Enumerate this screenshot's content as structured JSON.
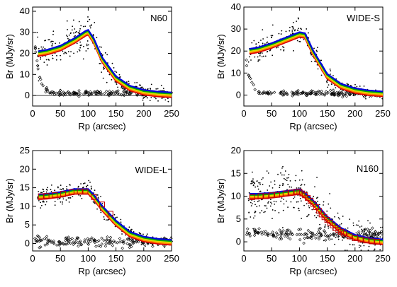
{
  "chart_data": [
    {
      "type": "scatter",
      "title": "N60",
      "xlabel": "Rp (arcsec)",
      "ylabel": "Br (MJy/sr)",
      "xlim": [
        0,
        250
      ],
      "ylim": [
        -5,
        42
      ],
      "xticks": [
        "0",
        "50",
        "100",
        "150",
        "200",
        "250"
      ],
      "yticks": [
        "0",
        "10",
        "20",
        "30",
        "40"
      ],
      "legend": "none",
      "zero_line": true,
      "profile": {
        "x": [
          0,
          25,
          50,
          75,
          95,
          100,
          110,
          125,
          150,
          175,
          200,
          225,
          250
        ],
        "y": [
          19.5,
          20.5,
          22.5,
          26,
          29.5,
          30,
          26,
          17,
          8,
          3.5,
          1.5,
          0.7,
          0.3
        ]
      },
      "background": {
        "x": [
          2,
          5,
          8,
          10,
          12,
          15,
          18,
          20,
          25,
          30,
          40,
          60,
          80,
          100,
          120,
          140,
          160,
          180,
          200,
          220,
          240,
          250
        ],
        "y": [
          28,
          22,
          16,
          12,
          9,
          7,
          5,
          3.5,
          2.5,
          1.5,
          1,
          1,
          1,
          1.2,
          1,
          1,
          1,
          1,
          1,
          1,
          1,
          1
        ]
      },
      "scatter_spread": 3.5
    },
    {
      "type": "scatter",
      "title": "WIDE-S",
      "xlabel": "Rp (arcsec)",
      "ylabel": "Br (MJy/sr)",
      "xlim": [
        0,
        250
      ],
      "ylim": [
        -5,
        40
      ],
      "xticks": [
        "0",
        "50",
        "100",
        "150",
        "200",
        "250"
      ],
      "yticks": [
        "0",
        "10",
        "20",
        "30",
        "40"
      ],
      "legend": "none",
      "zero_line": false,
      "profile": {
        "x": [
          0,
          25,
          50,
          75,
          100,
          110,
          125,
          150,
          175,
          200,
          225,
          250
        ],
        "y": [
          19.5,
          20.5,
          22.5,
          25,
          27.5,
          27,
          19,
          8.5,
          4,
          2,
          1,
          0.5
        ]
      },
      "background": {
        "x": [
          2,
          5,
          8,
          10,
          12,
          15,
          18,
          20,
          25,
          30,
          40,
          60,
          80,
          100,
          120,
          140,
          160,
          180,
          200,
          220,
          240,
          250
        ],
        "y": [
          22,
          14,
          10,
          8,
          7,
          5,
          3.5,
          2.5,
          1.5,
          1,
          0.8,
          0.8,
          0.8,
          0.8,
          0.8,
          0.8,
          0.8,
          0.8,
          0.8,
          0.8,
          0.8,
          0.8
        ]
      },
      "scatter_spread": 2.5
    },
    {
      "type": "scatter",
      "title": "WIDE-L",
      "xlabel": "Rp (arcsec)",
      "ylabel": "Br (MJy/sr)",
      "xlim": [
        0,
        250
      ],
      "ylim": [
        -2,
        25
      ],
      "xticks": [
        "0",
        "50",
        "100",
        "150",
        "200",
        "250"
      ],
      "yticks": [
        "0",
        "5",
        "10",
        "15",
        "20",
        "25"
      ],
      "legend": "none",
      "zero_line": false,
      "profile": {
        "x": [
          0,
          15,
          25,
          50,
          75,
          100,
          110,
          125,
          150,
          175,
          200,
          225,
          250
        ],
        "y": [
          12.5,
          12.6,
          12.7,
          13.2,
          14,
          14,
          12.5,
          9.5,
          5.5,
          2.5,
          1.2,
          0.6,
          0.3
        ]
      },
      "background": {
        "x": [
          10,
          20,
          40,
          60,
          80,
          100,
          120,
          140,
          160,
          180,
          200,
          220,
          240,
          250
        ],
        "y": [
          1,
          0.5,
          0.5,
          0.5,
          0.5,
          0.5,
          0.5,
          0.5,
          0.5,
          0.5,
          0.5,
          0.5,
          0.5,
          0.5
        ]
      },
      "boxes": {
        "x": [
          15,
          25,
          40,
          55,
          70,
          85,
          95,
          110,
          125,
          140
        ],
        "y": [
          12.7,
          12.8,
          13,
          13.4,
          13.8,
          14,
          14,
          12.5,
          10.5,
          8
        ]
      },
      "scatter_spread": 1.6
    },
    {
      "type": "scatter",
      "title": "N160",
      "xlabel": "Rp (arcsec)",
      "ylabel": "Br (MJy/sr)",
      "xlim": [
        0,
        250
      ],
      "ylim": [
        -2,
        20
      ],
      "xticks": [
        "0",
        "50",
        "100",
        "150",
        "200",
        "250"
      ],
      "yticks": [
        "0",
        "5",
        "10",
        "15",
        "20"
      ],
      "legend": "none",
      "zero_line": false,
      "profile": {
        "x": [
          0,
          25,
          50,
          75,
          100,
          110,
          125,
          150,
          175,
          200,
          225,
          250
        ],
        "y": [
          10,
          10,
          10.2,
          10.6,
          11,
          10.2,
          8.5,
          5,
          2.5,
          1,
          0.3,
          0
        ]
      },
      "background": {
        "x": [
          10,
          30,
          50,
          70,
          90,
          110,
          130,
          150,
          170,
          190,
          210,
          230,
          250
        ],
        "y": [
          2,
          2,
          1.5,
          1.5,
          1.5,
          1.5,
          1.5,
          1.5,
          1.5,
          1.5,
          1.5,
          1.5,
          1.5
        ]
      },
      "boxes": {
        "x": [
          15,
          30,
          40,
          50,
          60,
          75,
          85,
          95,
          100,
          105,
          110,
          115,
          120,
          125,
          130,
          135,
          140,
          145,
          150,
          155,
          160,
          165,
          170,
          175,
          180,
          190,
          200,
          210,
          220,
          230,
          240
        ],
        "y": [
          9.8,
          10,
          10,
          10.2,
          10.3,
          10.6,
          10.8,
          11,
          11,
          10.6,
          10.2,
          9.6,
          9,
          8.3,
          7.6,
          6.8,
          6,
          5.4,
          4.8,
          4.2,
          3.6,
          3,
          2.6,
          2.2,
          1.8,
          1.2,
          0.8,
          0.5,
          0.3,
          0.1,
          0
        ]
      },
      "scatter_spread": 4
    }
  ]
}
